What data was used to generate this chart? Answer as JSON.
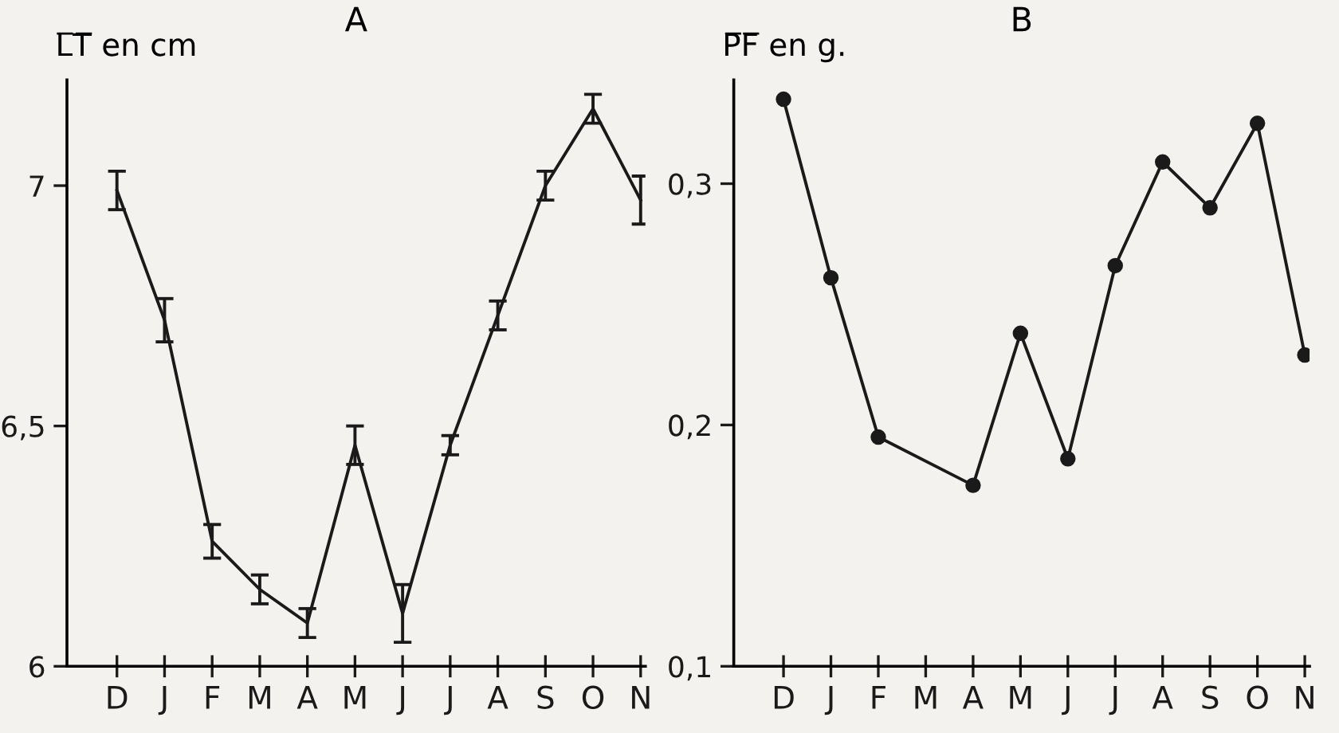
{
  "chart_data": [
    {
      "type": "line",
      "title": "A",
      "ylabel": "L̅T̅ en cm",
      "categories": [
        "D",
        "J",
        "F",
        "M",
        "A",
        "M",
        "J",
        "J",
        "A",
        "S",
        "O",
        "N"
      ],
      "series": [
        {
          "color": "#1a1a1a",
          "values": [
            6.99,
            6.72,
            6.26,
            6.16,
            6.09,
            6.46,
            6.11,
            6.46,
            6.73,
            7.0,
            7.16,
            6.97
          ],
          "errors": [
            0.04,
            0.045,
            0.035,
            0.03,
            0.03,
            0.04,
            0.06,
            0.02,
            0.03,
            0.03,
            0.03,
            0.05
          ]
        }
      ],
      "ylim": [
        6,
        7.22
      ],
      "yticks": [
        6,
        {
          "value": 6.5,
          "label": "6,5"
        },
        7
      ],
      "marker": "none",
      "line_style": "solid",
      "grid": false,
      "legend": false
    },
    {
      "type": "line",
      "title": "B",
      "ylabel": "P̅F̅ en g.",
      "categories": [
        "D",
        "J",
        "F",
        "M",
        "A",
        "M",
        "J",
        "J",
        "A",
        "S",
        "O",
        "N"
      ],
      "series": [
        {
          "color": "#1a1a1a",
          "values": [
            0.335,
            0.261,
            0.195,
            null,
            0.175,
            0.238,
            0.186,
            0.266,
            0.309,
            0.29,
            0.325,
            0.229
          ]
        }
      ],
      "ylim": [
        0.1,
        0.343
      ],
      "yticks": [
        {
          "value": 0.1,
          "label": "0,1"
        },
        {
          "value": 0.2,
          "label": "0,2"
        },
        {
          "value": 0.3,
          "label": "0,3"
        }
      ],
      "marker": "circle",
      "line_style": "solid",
      "grid": false,
      "legend": false
    }
  ]
}
